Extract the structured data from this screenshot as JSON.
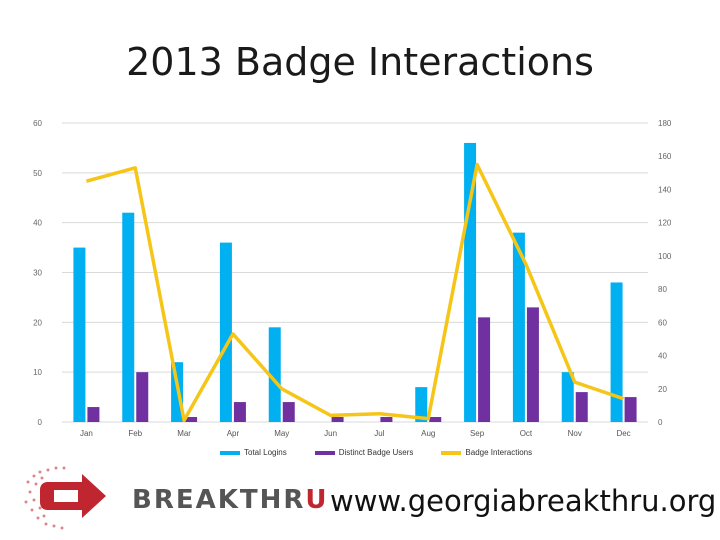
{
  "slide": {
    "title": "2013 Badge Interactions",
    "url": "www.georgiabreakthru.org",
    "brand_part1": "BREAKTHR",
    "brand_part2": "U",
    "logo_icon": "breakthru-arrow-logo-icon"
  },
  "colors": {
    "total_logins": "#00b0f0",
    "distinct_users": "#7030a0",
    "badge_interactions": "#f5c518",
    "grid": "#d9d9d9",
    "brand_red": "#c0262f"
  },
  "chart_data": {
    "type": "bar",
    "title": "2013 Badge Interactions",
    "categories": [
      "Jan",
      "Feb",
      "Mar",
      "Apr",
      "May",
      "Jun",
      "Jul",
      "Aug",
      "Sep",
      "Oct",
      "Nov",
      "Dec"
    ],
    "left_axis": {
      "ylim": [
        0,
        60
      ],
      "ticks": [
        "0",
        "10",
        "20",
        "30",
        "40",
        "50",
        "60"
      ]
    },
    "right_axis": {
      "ylim": [
        0,
        180
      ],
      "ticks": [
        "0",
        "20",
        "40",
        "60",
        "80",
        "100",
        "120",
        "140",
        "160",
        "180"
      ]
    },
    "series": [
      {
        "name": "Total Logins",
        "type": "bar",
        "axis": "left",
        "values": [
          35,
          42,
          12,
          36,
          19,
          0,
          0,
          7,
          56,
          38,
          10,
          28
        ]
      },
      {
        "name": "Distinct Badge Users",
        "type": "bar",
        "axis": "left",
        "values": [
          3,
          10,
          1,
          4,
          4,
          1,
          1,
          1,
          21,
          23,
          6,
          5
        ]
      },
      {
        "name": "Badge Interactions",
        "type": "line",
        "axis": "right",
        "values": [
          145,
          153,
          1,
          53,
          20,
          4,
          5,
          2,
          155,
          95,
          24,
          14
        ]
      }
    ],
    "grid": true,
    "legend_position": "bottom"
  }
}
